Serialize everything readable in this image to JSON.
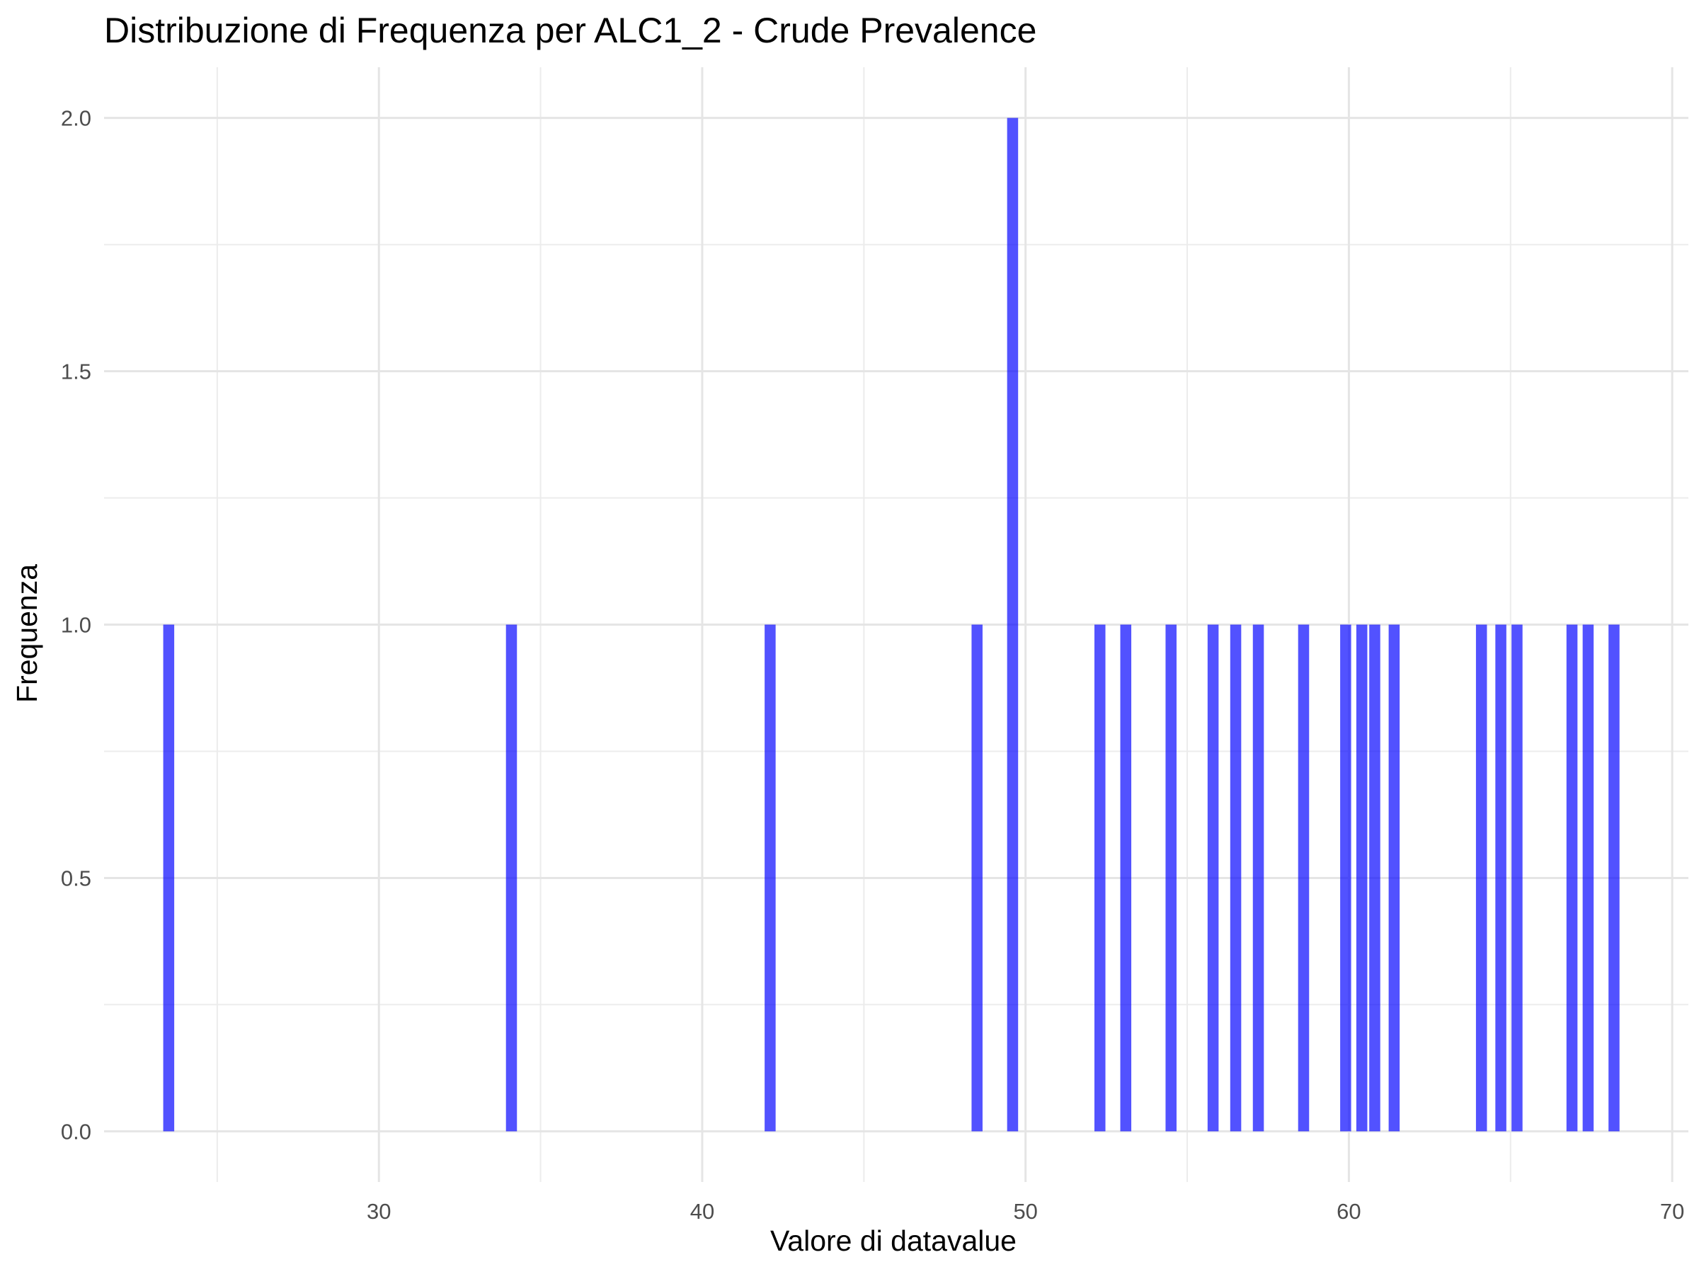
{
  "chart_data": {
    "type": "bar",
    "title": "Distribuzione di Frequenza per ALC1_2 - Crude Prevalence",
    "xlabel": "Valore di datavalue",
    "ylabel": "Frequenza",
    "xlim": [
      21.5,
      70.5
    ],
    "ylim": [
      -0.1,
      2.1
    ],
    "x_ticks": [
      30,
      40,
      50,
      60,
      70
    ],
    "x_tick_labels": [
      "30",
      "40",
      "50",
      "60",
      "70"
    ],
    "y_ticks": [
      0,
      0.5,
      1,
      1.5,
      2
    ],
    "y_tick_labels": [
      "0.0",
      "0.5",
      "1.0",
      "1.5",
      "2.0"
    ],
    "bar_width": 0.34,
    "grid": true,
    "legend": "none",
    "color": "#0000ff",
    "series": [
      {
        "values": [
          {
            "x": 23.5,
            "y": 1
          },
          {
            "x": 34.1,
            "y": 1
          },
          {
            "x": 42.1,
            "y": 1
          },
          {
            "x": 48.5,
            "y": 1
          },
          {
            "x": 49.6,
            "y": 2
          },
          {
            "x": 52.3,
            "y": 1
          },
          {
            "x": 53.1,
            "y": 1
          },
          {
            "x": 54.5,
            "y": 1
          },
          {
            "x": 55.8,
            "y": 1
          },
          {
            "x": 56.5,
            "y": 1
          },
          {
            "x": 57.2,
            "y": 1
          },
          {
            "x": 58.6,
            "y": 1
          },
          {
            "x": 59.9,
            "y": 1
          },
          {
            "x": 60.4,
            "y": 1
          },
          {
            "x": 60.8,
            "y": 1
          },
          {
            "x": 61.4,
            "y": 1
          },
          {
            "x": 64.1,
            "y": 1
          },
          {
            "x": 64.7,
            "y": 1
          },
          {
            "x": 65.2,
            "y": 1
          },
          {
            "x": 66.9,
            "y": 1
          },
          {
            "x": 67.4,
            "y": 1
          },
          {
            "x": 68.2,
            "y": 1
          }
        ]
      }
    ]
  }
}
